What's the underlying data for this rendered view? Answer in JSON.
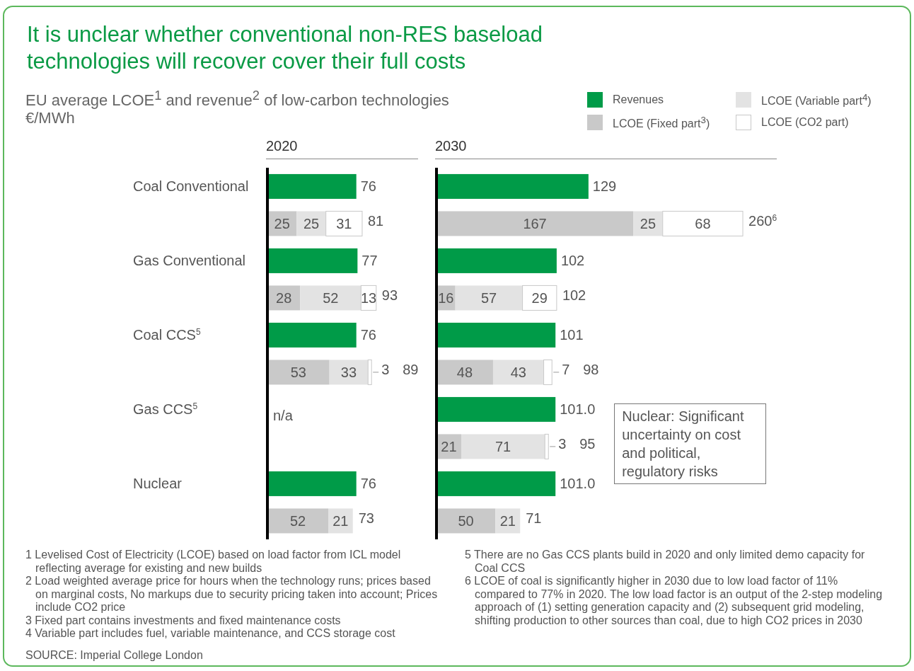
{
  "chart_data": [
    {
      "type": "other",
      "title": "It is unclear whether conventional non-RES baseload technologies will recover cover their full costs",
      "subtitle": "EU average LCOE$^{1}$ and revenue$^{2}$ of low-carbon technologies",
      "annotations": [
        "€/MWh",
        "1 Levelised Cost of Electricity (LCOE) based on load factor from ICL model reflecting average for existing and new builds",
        "2 Load weighted average price for hours when the technology runs; prices based on marginal costs, No markups due to security pricing taken into account; Prices include CO2 price",
        "3 Fixed part contains investments and fixed maintenance costs",
        "4 Variable part includes fuel, variable maintenance, and CCS storage cost",
        "5 There are no Gas CCS plants build in 2020 and only limited demo capacity for Coal CCS",
        "6 LCOE of coal is significantly higher in 2030 due to low load factor of 11% compared to 77% in 2020. The low load factor is an output of the 2-step modeling approach of (1) setting generation capacity and (2) subsequent grid modeling, shifting production to other sources than coal, due to high CO2 prices in 2030",
        "SOURCE: Imperial College London"
      ]
    },
    {
      "type": "bar",
      "title": "2020",
      "orientation": "horizontal",
      "stacked": true,
      "data_labels": true,
      "tick_labels": "y",
      "xlim": [
        0,
        130
      ],
      "categories": [
        "Coal Conventional",
        null,
        "Gas Conventional",
        null,
        "Coal CCS$^{5}$",
        null,
        "Gas CCS$^{5}$",
        null,
        "Nuclear",
        null
      ],
      "series": [
        {
          "color": "#009b48",
          "values": [
            76,
            null,
            77,
            null,
            76,
            null,
            null,
            null,
            76,
            null
          ]
        },
        {
          "color": "#c9c9c9",
          "values": [
            null,
            25,
            null,
            28,
            null,
            53,
            null,
            null,
            null,
            52
          ]
        },
        {
          "color": "#e3e3e3",
          "values": [
            null,
            25,
            null,
            52,
            null,
            33,
            null,
            null,
            null,
            21
          ]
        },
        {
          "color": "#ffffff",
          "values": [
            null,
            31,
            null,
            13,
            null,
            3,
            null,
            null,
            null,
            null
          ]
        }
      ],
      "totals": [
        null,
        "81",
        null,
        "93",
        null,
        "89",
        null,
        null,
        null,
        "73"
      ],
      "annotations": [
        "n/a"
      ]
    },
    {
      "type": "bar",
      "title": "2030",
      "orientation": "horizontal",
      "stacked": true,
      "data_labels": true,
      "tick_labels": false,
      "xlim": [
        0,
        290
      ],
      "legend": "top right",
      "categories": [
        null,
        null,
        null,
        null,
        null,
        null,
        null,
        null,
        null,
        null
      ],
      "series": [
        {
          "name": "Revenues",
          "color": "#009b48",
          "values": [
            129,
            null,
            102,
            null,
            101,
            null,
            101,
            null,
            101,
            null
          ],
          "value_labels": [
            "129",
            null,
            "102",
            null,
            "101",
            null,
            "101.0",
            null,
            "101.0",
            null
          ]
        },
        {
          "name": "LCOE (Fixed part$^{3}$)",
          "color": "#c9c9c9",
          "values": [
            null,
            167,
            null,
            16,
            null,
            48,
            null,
            21,
            null,
            50
          ]
        },
        {
          "name": "LCOE (Variable part$^{4}$)",
          "color": "#e3e3e3",
          "values": [
            null,
            25,
            null,
            57,
            null,
            43,
            null,
            71,
            null,
            21
          ]
        },
        {
          "name": "LCOE (CO2 part)",
          "color": "#ffffff",
          "values": [
            null,
            68,
            null,
            29,
            null,
            7,
            null,
            3,
            null,
            null
          ]
        }
      ],
      "totals": [
        null,
        "260$^{6}$",
        null,
        "102",
        null,
        "98",
        null,
        "95",
        null,
        "71"
      ],
      "annotations": [
        "Nuclear: Significant uncertainty on cost and political, regulatory risks"
      ]
    }
  ]
}
